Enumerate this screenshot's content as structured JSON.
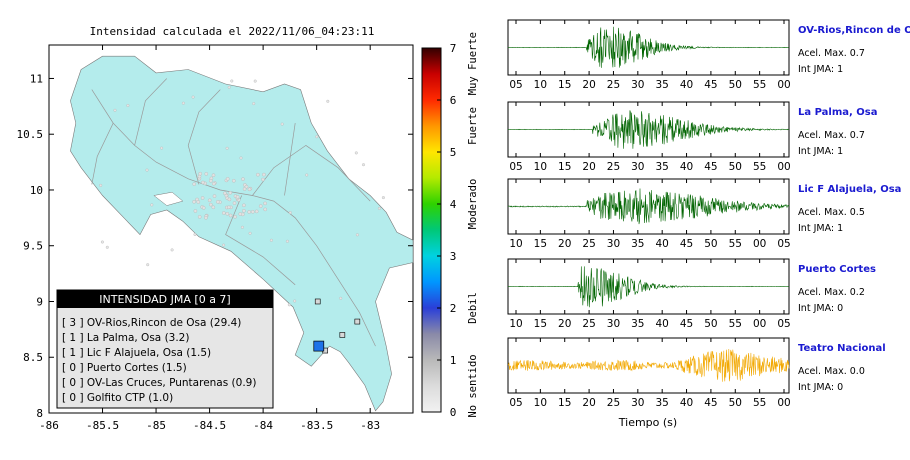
{
  "map": {
    "title": "Intensidad calculada el 2022/11/06_04:23:11",
    "xlim": [
      -86,
      -82.6
    ],
    "ylim": [
      8,
      11.3
    ],
    "xticks": [
      -86,
      -85.5,
      -85,
      -84.5,
      -84,
      -83.5,
      -83
    ],
    "yticks": [
      8,
      8.5,
      9,
      9.5,
      10,
      10.5,
      11
    ],
    "land_color": "#b4ecec",
    "epicenter": {
      "lon": -83.48,
      "lat": 8.6,
      "color": "#1e73e8"
    },
    "legend": {
      "title": "INTENSIDAD JMA [0 a 7]",
      "entries": [
        "[ 3 ]  OV-Rios,Rincon de Osa (29.4)",
        "[ 1 ]  La Palma, Osa (3.2)",
        "[ 1 ]  Lic F Alajuela, Osa (1.5)",
        "[ 0 ]  Puerto Cortes (1.5)",
        "[ 0 ]  OV-Las Cruces, Puntarenas (0.9)",
        "[ 0 ]  Golfito CTP (1.0)"
      ]
    }
  },
  "colorbar": {
    "min": 0,
    "max": 7,
    "ticks": [
      "0",
      "1",
      "2",
      "3",
      "4",
      "5",
      "6",
      "7"
    ],
    "stops": [
      {
        "v": 0,
        "c": "#f2f2f2"
      },
      {
        "v": 0.5,
        "c": "#dcdcdc"
      },
      {
        "v": 1,
        "c": "#b9b9b9"
      },
      {
        "v": 1.5,
        "c": "#8a8aa8"
      },
      {
        "v": 2,
        "c": "#2a3fd8"
      },
      {
        "v": 2.5,
        "c": "#0096ff"
      },
      {
        "v": 3,
        "c": "#00d2e0"
      },
      {
        "v": 3.5,
        "c": "#00c878"
      },
      {
        "v": 4,
        "c": "#2ed200"
      },
      {
        "v": 4.5,
        "c": "#b4ea00"
      },
      {
        "v": 5,
        "c": "#ffe600"
      },
      {
        "v": 5.5,
        "c": "#ff9600"
      },
      {
        "v": 6,
        "c": "#ff2a00"
      },
      {
        "v": 6.5,
        "c": "#c80000"
      },
      {
        "v": 7,
        "c": "#330000"
      }
    ],
    "labels": [
      {
        "text": "No sentido",
        "v": 0.5
      },
      {
        "text": "Debil",
        "v": 2
      },
      {
        "text": "Moderado",
        "v": 4
      },
      {
        "text": "Fuerte",
        "v": 5.5
      },
      {
        "text": "Muy Fuerte",
        "v": 6.7
      }
    ]
  },
  "traces_xlabel": "Tiempo (s)",
  "traces": [
    {
      "station": "OV-Rios,Rincon de Osa",
      "acel_label": "Acel. Max. 0.7",
      "int_label": "Int JMA: 1",
      "color": "#006400",
      "xticks": [
        "05",
        "10",
        "15",
        "20",
        "25",
        "30",
        "35",
        "40",
        "45",
        "50",
        "55",
        "00"
      ],
      "onset": 0.28,
      "peak": 0.35,
      "amp": 0.9,
      "decay": 0.12,
      "noise": 0.01
    },
    {
      "station": "La Palma, Osa",
      "acel_label": "Acel. Max. 0.7",
      "int_label": "Int JMA: 1",
      "color": "#006400",
      "xticks": [
        "05",
        "10",
        "15",
        "20",
        "25",
        "30",
        "35",
        "40",
        "45",
        "50",
        "55",
        "00"
      ],
      "onset": 0.3,
      "peak": 0.42,
      "amp": 0.8,
      "decay": 0.18,
      "noise": 0.01
    },
    {
      "station": "Lic F Alajuela, Osa",
      "acel_label": "Acel. Max. 0.5",
      "int_label": "Int JMA: 1",
      "color": "#006400",
      "xticks": [
        "10",
        "15",
        "20",
        "25",
        "30",
        "35",
        "40",
        "45",
        "50",
        "55",
        "00",
        "05"
      ],
      "onset": 0.28,
      "peak": 0.42,
      "amp": 0.75,
      "decay": 0.25,
      "noise": 0.02
    },
    {
      "station": "Puerto Cortes",
      "acel_label": "Acel. Max. 0.2",
      "int_label": "Int JMA: 0",
      "color": "#006400",
      "xticks": [
        "10",
        "15",
        "20",
        "25",
        "30",
        "35",
        "40",
        "45",
        "50",
        "55",
        "00",
        "05"
      ],
      "onset": 0.25,
      "peak": 0.28,
      "amp": 0.9,
      "decay": 0.12,
      "noise": 0.01
    },
    {
      "station": "Teatro Nacional",
      "acel_label": "Acel. Max. 0.0",
      "int_label": "Int JMA: 0",
      "color": "#f2a800",
      "xticks": [
        "05",
        "10",
        "15",
        "20",
        "25",
        "30",
        "35",
        "40",
        "45",
        "50",
        "55",
        "00"
      ],
      "onset": 0.0,
      "peak": 0.75,
      "amp": 0.55,
      "decay": 0.4,
      "noise": 0.18
    }
  ]
}
